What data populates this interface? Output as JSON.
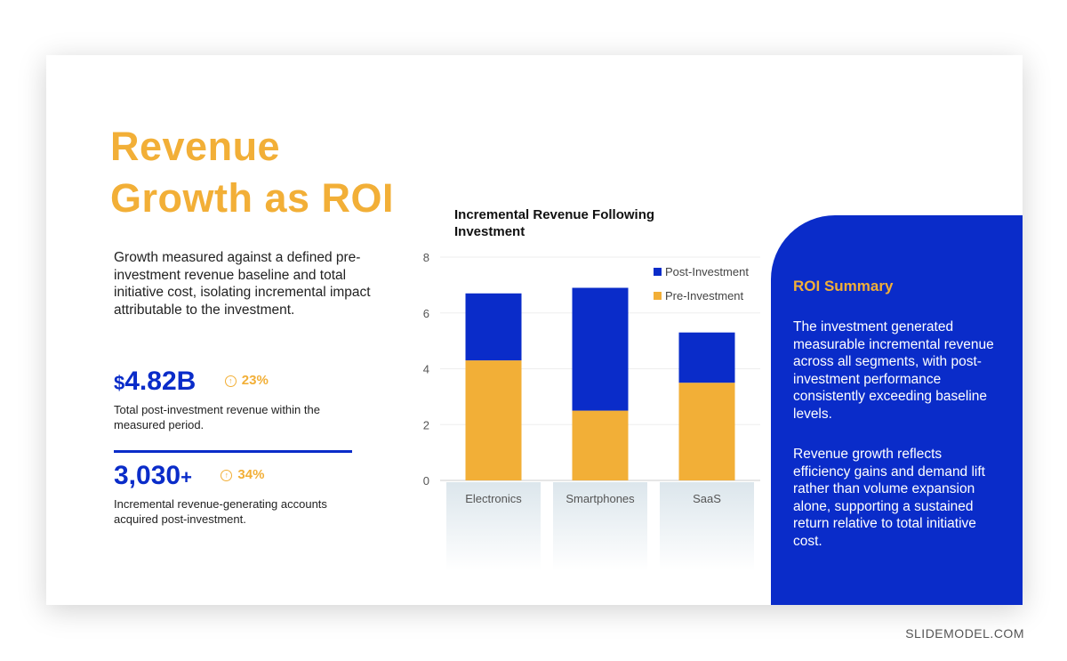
{
  "title": {
    "line1": "Revenue",
    "line2": "Growth as ROI"
  },
  "intro": "Growth measured against a defined pre-investment revenue baseline and total initiative cost, isolating incremental impact attributable to the investment.",
  "kpis": [
    {
      "prefix": "$",
      "value": "4.82B",
      "change": "23%",
      "change_icon": "arrow-up-circle-icon",
      "description": "Total post-investment revenue within the measured period."
    },
    {
      "value": "3,030",
      "suffix": "+",
      "change": "34%",
      "change_icon": "arrow-up-circle-icon",
      "description": "Incremental revenue-generating accounts acquired post-investment."
    }
  ],
  "chart_data": {
    "type": "bar",
    "stacked": true,
    "title": "Incremental Revenue Following Investment",
    "categories": [
      "Electronics",
      "Smartphones",
      "SaaS"
    ],
    "series": [
      {
        "name": "Pre-Investment",
        "values": [
          4.3,
          2.5,
          3.5
        ],
        "color": "#F2AF37"
      },
      {
        "name": "Post-Investment",
        "values": [
          2.4,
          4.4,
          1.8
        ],
        "color": "#0A2CC9"
      }
    ],
    "ylim": [
      0,
      8
    ],
    "yticks": [
      "0",
      "2",
      "4",
      "6",
      "8"
    ],
    "grid": true,
    "legend": "top-right"
  },
  "summary": {
    "heading": "ROI Summary",
    "p1": "The investment generated measurable incremental revenue across all segments, with post-investment performance consistently exceeding baseline levels.",
    "p2": "Revenue growth reflects efficiency gains and demand lift rather than volume expansion alone, supporting a sustained return relative to total initiative cost."
  },
  "colors": {
    "accent": "#F2AF37",
    "brand": "#0A2CC9"
  },
  "watermark": "SLIDEMODEL.COM"
}
